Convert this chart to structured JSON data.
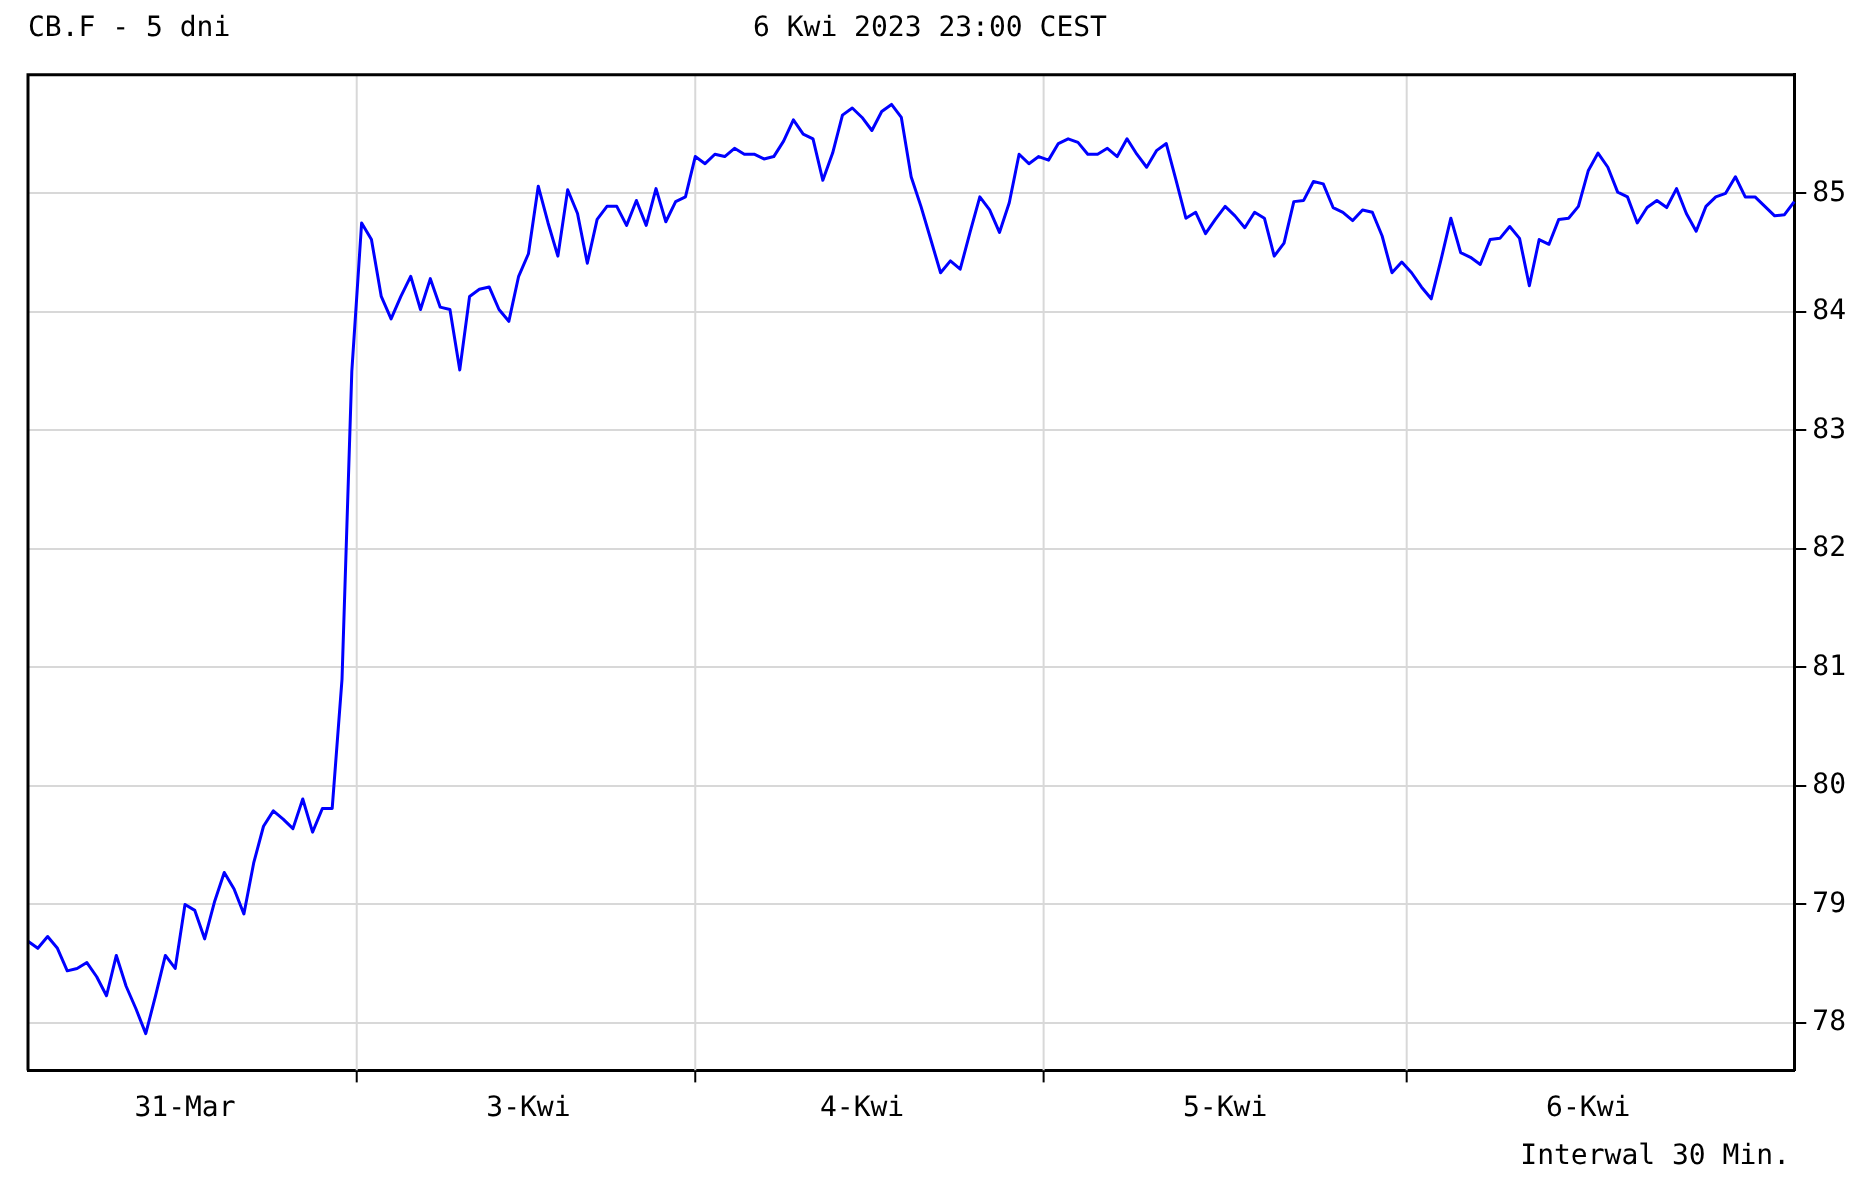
{
  "chart_data": {
    "type": "line",
    "title": "CB.F - 5 dni",
    "subtitle": "6 Kwi 2023 23:00 CEST",
    "annotations": [
      "Interwal 30 Min."
    ],
    "categories": [
      null,
      null,
      null,
      null,
      null,
      null,
      null,
      null,
      null,
      null,
      null,
      null,
      null,
      null,
      null,
      null,
      "31-Mar",
      null,
      null,
      null,
      null,
      null,
      null,
      null,
      null,
      null,
      null,
      null,
      null,
      null,
      null,
      null,
      null,
      null,
      null,
      null,
      null,
      null,
      null,
      null,
      null,
      null,
      null,
      null,
      null,
      null,
      null,
      null,
      null,
      null,
      null,
      "3-Kwi",
      null,
      null,
      null,
      null,
      null,
      null,
      null,
      null,
      null,
      null,
      null,
      null,
      null,
      null,
      null,
      null,
      null,
      null,
      null,
      null,
      null,
      null,
      null,
      null,
      null,
      null,
      null,
      null,
      null,
      null,
      null,
      null,
      null,
      "4-Kwi",
      null,
      null,
      null,
      null,
      null,
      null,
      null,
      null,
      null,
      null,
      null,
      null,
      null,
      null,
      null,
      null,
      null,
      null,
      null,
      null,
      null,
      null,
      null,
      null,
      null,
      null,
      null,
      null,
      null,
      null,
      null,
      null,
      null,
      null,
      null,
      null,
      "5-Kwi",
      null,
      null,
      null,
      null,
      null,
      null,
      null,
      null,
      null,
      null,
      null,
      null,
      null,
      null,
      null,
      null,
      null,
      null,
      null,
      null,
      null,
      null,
      null,
      null,
      null,
      null,
      null,
      null,
      null,
      null,
      null,
      null,
      null,
      null,
      null,
      null,
      "6-Kwi",
      null,
      null,
      null,
      null,
      null,
      null,
      null,
      null,
      null,
      null,
      null,
      null,
      null,
      null,
      null,
      null,
      null,
      null,
      null,
      null,
      null
    ],
    "series": [
      {
        "color": "#0000ff",
        "values": [
          78.69,
          78.63,
          78.73,
          78.63,
          78.44,
          78.46,
          78.51,
          78.39,
          78.23,
          78.57,
          78.31,
          78.12,
          77.91,
          78.23,
          78.57,
          78.46,
          79.0,
          78.95,
          78.71,
          79.02,
          79.27,
          79.13,
          78.92,
          79.35,
          79.66,
          79.79,
          79.72,
          79.64,
          79.89,
          79.61,
          79.81,
          79.81,
          80.9,
          83.5,
          84.75,
          84.61,
          84.13,
          83.94,
          84.13,
          84.3,
          84.02,
          84.28,
          84.04,
          84.02,
          83.51,
          84.13,
          84.19,
          84.21,
          84.02,
          83.92,
          84.3,
          84.49,
          85.06,
          84.75,
          84.47,
          85.03,
          84.83,
          84.41,
          84.78,
          84.89,
          84.89,
          84.73,
          84.94,
          84.73,
          85.04,
          84.76,
          84.93,
          84.97,
          85.31,
          85.25,
          85.33,
          85.31,
          85.38,
          85.33,
          85.33,
          85.29,
          85.31,
          85.44,
          85.62,
          85.5,
          85.46,
          85.11,
          85.34,
          85.66,
          85.72,
          85.64,
          85.53,
          85.69,
          85.75,
          85.64,
          85.14,
          84.89,
          84.61,
          84.33,
          84.43,
          84.36,
          84.67,
          84.97,
          84.86,
          84.67,
          84.92,
          85.33,
          85.25,
          85.31,
          85.28,
          85.42,
          85.46,
          85.43,
          85.33,
          85.33,
          85.38,
          85.31,
          85.46,
          85.33,
          85.22,
          85.36,
          85.42,
          85.11,
          84.79,
          84.84,
          84.66,
          84.78,
          84.89,
          84.81,
          84.71,
          84.84,
          84.79,
          84.47,
          84.58,
          84.93,
          84.94,
          85.1,
          85.08,
          84.88,
          84.84,
          84.77,
          84.86,
          84.84,
          84.64,
          84.33,
          84.42,
          84.33,
          84.21,
          84.11,
          84.44,
          84.79,
          84.5,
          84.46,
          84.4,
          84.61,
          84.62,
          84.72,
          84.62,
          84.22,
          84.61,
          84.57,
          84.78,
          84.79,
          84.89,
          85.19,
          85.34,
          85.22,
          85.01,
          84.97,
          84.75,
          84.88,
          84.94,
          84.88,
          85.04,
          84.83,
          84.68,
          84.89,
          84.97,
          85.0,
          85.14,
          84.97,
          84.97,
          84.89,
          84.81,
          84.82,
          84.93
        ]
      }
    ],
    "ylim": [
      77.6,
      86.0
    ],
    "yticks": [
      78,
      79,
      80,
      81,
      82,
      83,
      84,
      85
    ],
    "grid": true,
    "marker": "none",
    "line_style": "solid",
    "legend": false
  }
}
